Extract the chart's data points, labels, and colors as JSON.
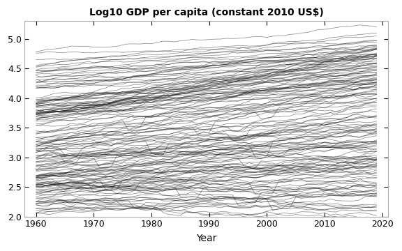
{
  "title": "Log10 GDP per capita (constant 2010 US$)",
  "xlabel": "Year",
  "ylabel": "",
  "xlim": [
    1958,
    2021
  ],
  "ylim": [
    2.0,
    5.3
  ],
  "xticks": [
    1960,
    1970,
    1980,
    1990,
    2000,
    2010,
    2020
  ],
  "yticks": [
    2.0,
    2.5,
    3.0,
    3.5,
    4.0,
    4.5,
    5.0
  ],
  "line_color": "#000000",
  "line_alpha": 0.45,
  "line_width": 0.55,
  "background_color": "#ffffff",
  "plot_bg_color": "#ffffff",
  "year_start": 1960,
  "year_end": 2019,
  "seed": 42
}
